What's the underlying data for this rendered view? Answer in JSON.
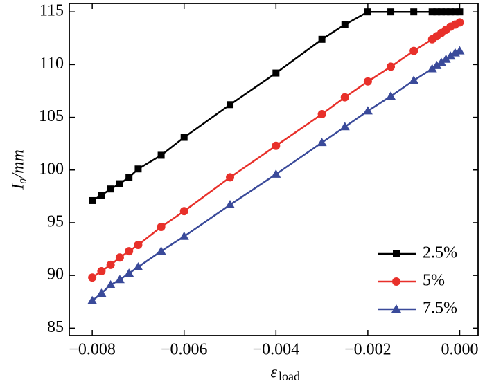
{
  "chart_data": {
    "type": "line",
    "y_label": "I₀/mm",
    "x_label": "ε",
    "x_label_sub": "load",
    "x": [
      -0.008,
      -0.0078,
      -0.0076,
      -0.0074,
      -0.0072,
      -0.007,
      -0.0065,
      -0.006,
      -0.005,
      -0.004,
      -0.003,
      -0.0025,
      -0.002,
      -0.0015,
      -0.001,
      -0.0006,
      -0.0005,
      -0.0004,
      -0.0003,
      -0.0002,
      -0.0001,
      0
    ],
    "series": [
      {
        "name": "2.5%",
        "color": "#000000",
        "marker": "square",
        "values": [
          97.1,
          97.6,
          98.2,
          98.7,
          99.3,
          100.1,
          101.4,
          103.1,
          106.2,
          109.2,
          112.4,
          113.8,
          115,
          115,
          115,
          115,
          115,
          115,
          115,
          115,
          115,
          115
        ]
      },
      {
        "name": "5%",
        "color": "#e8302a",
        "marker": "circle",
        "values": [
          89.8,
          90.4,
          91.0,
          91.7,
          92.3,
          92.9,
          94.6,
          96.1,
          99.3,
          102.3,
          105.3,
          106.9,
          108.4,
          109.8,
          111.3,
          112.4,
          112.7,
          113.0,
          113.3,
          113.6,
          113.8,
          114.0
        ]
      },
      {
        "name": "7.5%",
        "color": "#3a4a9a",
        "marker": "triangle",
        "values": [
          87.6,
          88.3,
          89.1,
          89.6,
          90.2,
          90.8,
          92.3,
          93.7,
          96.7,
          99.6,
          102.6,
          104.1,
          105.6,
          107.0,
          108.5,
          109.6,
          109.9,
          110.2,
          110.5,
          110.8,
          111.1,
          111.3
        ]
      }
    ],
    "xlim": [
      -0.0085,
      0.0004
    ],
    "ylim": [
      84.3,
      115.8
    ],
    "xticks": [
      {
        "value": -0.008,
        "label": "−0.008"
      },
      {
        "value": -0.006,
        "label": "−0.006"
      },
      {
        "value": -0.004,
        "label": "−0.004"
      },
      {
        "value": -0.002,
        "label": "−0.002"
      },
      {
        "value": 0,
        "label": "0.000"
      }
    ],
    "yticks": [
      85,
      90,
      95,
      100,
      105,
      110,
      115
    ],
    "legend": "lower right"
  }
}
